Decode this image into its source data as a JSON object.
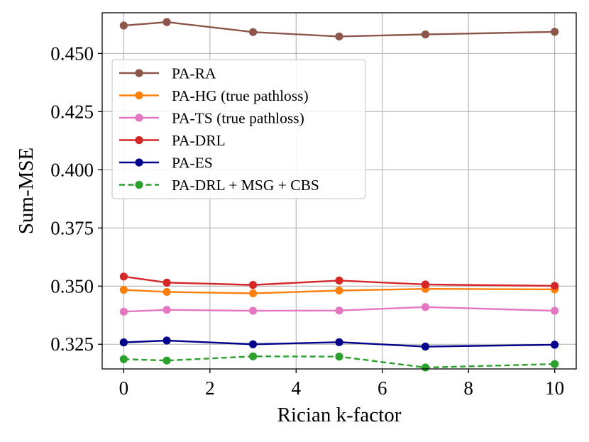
{
  "chart_data": {
    "type": "line",
    "title": "",
    "xlabel": "Rician k-factor",
    "ylabel": "Sum-MSE",
    "xlim": [
      -0.5,
      10.5
    ],
    "ylim": [
      0.3144,
      0.4675
    ],
    "xticks": [
      0,
      2,
      4,
      6,
      8,
      10
    ],
    "xtick_labels": [
      "0",
      "2",
      "4",
      "6",
      "8",
      "10"
    ],
    "yticks": [
      0.325,
      0.35,
      0.375,
      0.4,
      0.425,
      0.45
    ],
    "ytick_labels": [
      "0.325",
      "0.350",
      "0.375",
      "0.400",
      "0.425",
      "0.450"
    ],
    "grid": true,
    "legend_position": "upper-left",
    "x": [
      0,
      1,
      3,
      5,
      7,
      10
    ],
    "series": [
      {
        "name": "PA-RA",
        "color": "#8c564b",
        "dashed": false,
        "values": [
          0.462,
          0.4635,
          0.4592,
          0.4573,
          0.4582,
          0.4593
        ]
      },
      {
        "name": "PA-HG (true pathloss)",
        "color": "#ff7f0e",
        "dashed": false,
        "values": [
          0.3484,
          0.3475,
          0.3469,
          0.3481,
          0.3488,
          0.3486
        ]
      },
      {
        "name": "PA-TS (true pathloss)",
        "color": "#e377c2",
        "dashed": false,
        "values": [
          0.339,
          0.3398,
          0.3394,
          0.3395,
          0.341,
          0.3394
        ]
      },
      {
        "name": "PA-DRL",
        "color": "#d62728",
        "dashed": false,
        "values": [
          0.3541,
          0.3515,
          0.3505,
          0.3524,
          0.3507,
          0.3501
        ]
      },
      {
        "name": "PA-ES",
        "color": "#00008b",
        "dashed": false,
        "values": [
          0.3258,
          0.3266,
          0.325,
          0.3259,
          0.324,
          0.3248
        ]
      },
      {
        "name": "PA-DRL + MSG + CBS",
        "color": "#2ca02c",
        "dashed": true,
        "values": [
          0.3186,
          0.318,
          0.3198,
          0.3197,
          0.315,
          0.3165
        ]
      }
    ]
  }
}
